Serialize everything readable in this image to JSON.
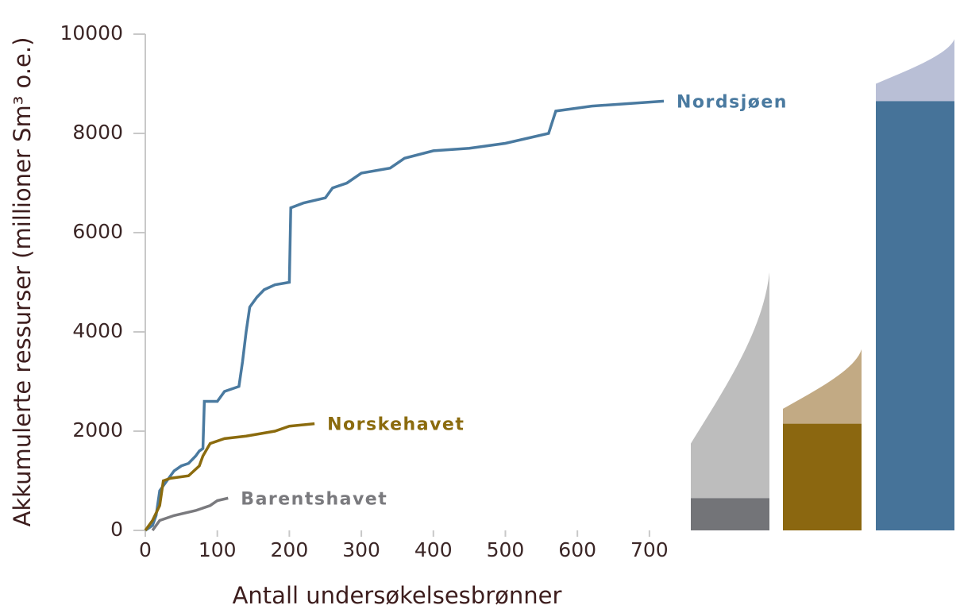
{
  "chart_data": {
    "type": "line",
    "x_label": "Antall undersøkelsesbrønner",
    "y_label": "Akkumulerte ressurser (millioner Sm³ o.e.)",
    "xlim": [
      0,
      720
    ],
    "xticks": [
      0,
      100,
      200,
      300,
      400,
      500,
      600,
      700
    ],
    "ylim": [
      0,
      10000
    ],
    "yticks": [
      0,
      2000,
      4000,
      6000,
      8000,
      10000
    ],
    "series": [
      {
        "name": "Nordsjøen",
        "color": "#4a7aa0",
        "x": [
          0,
          10,
          15,
          20,
          30,
          40,
          50,
          60,
          70,
          75,
          80,
          82,
          100,
          110,
          130,
          135,
          140,
          145,
          155,
          165,
          180,
          200,
          202,
          220,
          250,
          260,
          280,
          300,
          340,
          360,
          400,
          450,
          500,
          560,
          570,
          620,
          720
        ],
        "values": [
          0,
          100,
          300,
          800,
          1000,
          1200,
          1300,
          1350,
          1500,
          1600,
          1650,
          2600,
          2600,
          2800,
          2900,
          3400,
          4000,
          4500,
          4700,
          4850,
          4950,
          5000,
          6500,
          6600,
          6700,
          6900,
          7000,
          7200,
          7300,
          7500,
          7650,
          7700,
          7800,
          8000,
          8450,
          8550,
          8650
        ]
      },
      {
        "name": "Norskehavet",
        "color": "#8b6b0e",
        "x": [
          0,
          10,
          20,
          25,
          35,
          60,
          75,
          80,
          90,
          110,
          140,
          180,
          200,
          235
        ],
        "values": [
          0,
          200,
          500,
          1000,
          1050,
          1100,
          1300,
          1500,
          1750,
          1850,
          1900,
          2000,
          2100,
          2150
        ]
      },
      {
        "name": "Barentshavet",
        "color": "#7a7a7e",
        "x": [
          10,
          20,
          40,
          70,
          90,
          100,
          115
        ],
        "values": [
          0,
          200,
          300,
          400,
          500,
          600,
          650
        ]
      }
    ],
    "totals": {
      "values": [
        650,
        2150,
        8650
      ],
      "colors": [
        "#737478",
        "#8b6710",
        "#467399"
      ],
      "range_low": [
        1750,
        2450,
        9000
      ],
      "range_high": [
        5200,
        3650,
        9900
      ],
      "range_colors": [
        "#bdbdbd",
        "#c2aa84",
        "#b9bfd6"
      ]
    }
  }
}
